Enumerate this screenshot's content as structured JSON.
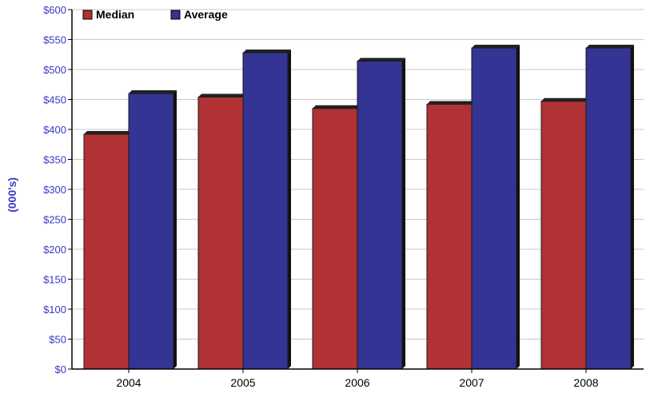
{
  "chart_data": {
    "type": "bar",
    "categories": [
      "2004",
      "2005",
      "2006",
      "2007",
      "2008"
    ],
    "series": [
      {
        "name": "Median",
        "values": [
          392,
          454,
          435,
          442,
          447
        ],
        "color": "#b03234"
      },
      {
        "name": "Average",
        "values": [
          460,
          528,
          514,
          536,
          536
        ],
        "color": "#343494"
      }
    ],
    "title": "",
    "xlabel": "",
    "ylabel": "(000's)",
    "ylim": [
      0,
      600
    ],
    "yticks": [
      "$0",
      "$50",
      "$100",
      "$150",
      "$200",
      "$250",
      "$300",
      "$350",
      "$400",
      "$450",
      "$500",
      "$550",
      "$600"
    ],
    "grid": true,
    "legend": "top-left",
    "bar_style": "3d"
  }
}
